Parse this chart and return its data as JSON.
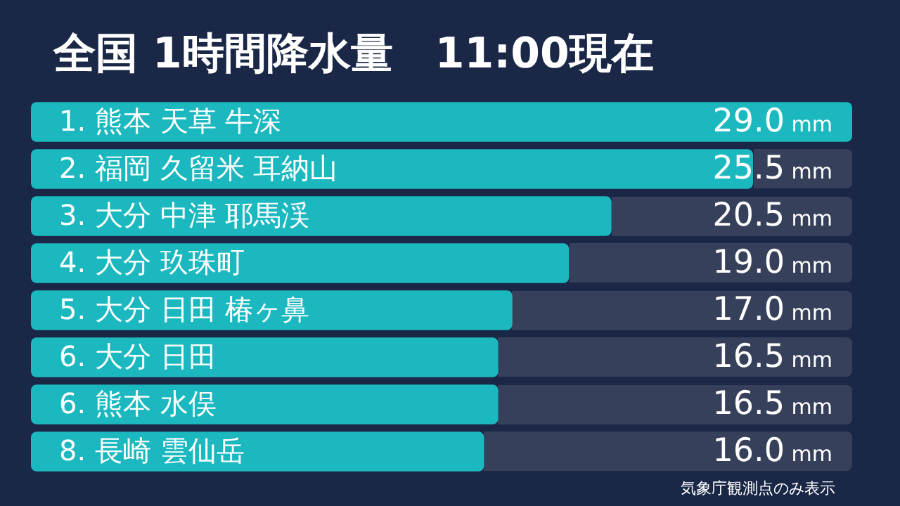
{
  "chart_data": {
    "type": "bar",
    "orientation": "horizontal",
    "title": "全国 1時間降水量　11:00現在",
    "categories": [
      "1. 熊本 天草 牛深",
      "2. 福岡 久留米 耳納山",
      "3. 大分 中津 耶馬渓",
      "4. 大分 玖珠町",
      "5. 大分 日田 椿ヶ鼻",
      "6. 大分 日田",
      "6. 熊本 水俣",
      "8. 長崎 雲仙岳"
    ],
    "values": [
      29.0,
      25.5,
      20.5,
      19.0,
      17.0,
      16.5,
      16.5,
      16.0
    ],
    "value_labels": [
      "29.0",
      "25.5",
      "20.5",
      "19.0",
      "17.0",
      "16.5",
      "16.5",
      "16.0"
    ],
    "color": "#1cb8c0",
    "tick_labels": false,
    "annotations": [
      "mm",
      "mm",
      "mm",
      "mm",
      "mm",
      "mm",
      "mm",
      "mm",
      "気象庁観測点のみ表示"
    ]
  }
}
